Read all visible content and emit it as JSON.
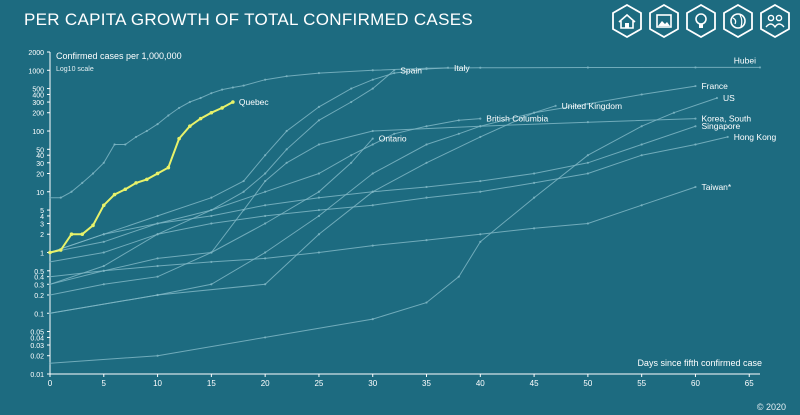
{
  "title": "PER CAPITA GROWTH OF TOTAL CONFIRMED CASES",
  "copyright": "© 2020",
  "toolbar": [
    {
      "icon": "home-icon"
    },
    {
      "icon": "image-icon"
    },
    {
      "icon": "lightbulb-icon"
    },
    {
      "icon": "globe-icon"
    },
    {
      "icon": "people-icon"
    }
  ],
  "colors": {
    "background": "#1d6b80",
    "line": "#7fb6c4",
    "highlight": "#e8f26a",
    "text": "#ffffff"
  },
  "chart_data": {
    "type": "line",
    "ylabel": "Confirmed cases per 1,000,000",
    "yscale_note": "Log10 scale",
    "xlabel": "Days since fifth confirmed case",
    "xlim": [
      0,
      66
    ],
    "ylim": [
      0.01,
      2000
    ],
    "yscale": "log",
    "xticks": [
      0,
      5,
      10,
      15,
      20,
      25,
      30,
      35,
      40,
      45,
      50,
      55,
      60,
      65
    ],
    "yticks": [
      0.01,
      0.02,
      0.03,
      0.04,
      0.05,
      0.1,
      0.2,
      0.3,
      0.4,
      0.5,
      1,
      2,
      3,
      4,
      5,
      10,
      20,
      30,
      40,
      50,
      100,
      200,
      300,
      400,
      500,
      1000,
      2000
    ],
    "ytick_labels": [
      "0.01",
      "0.02",
      "0.03",
      "0.04",
      "0.05",
      "0.1",
      "0.2",
      "0.3",
      "0.4",
      "0.5",
      "1",
      "2",
      "3",
      "4",
      "5",
      "10",
      "20",
      "30",
      "40",
      "50",
      "100",
      "200",
      "300",
      "400",
      "500",
      "1000",
      "2000"
    ],
    "series": [
      {
        "name": "Quebec",
        "highlight": true,
        "x": [
          0,
          1,
          2,
          3,
          4,
          5,
          6,
          7,
          8,
          9,
          10,
          11,
          12,
          13,
          14,
          15,
          16,
          17
        ],
        "y": [
          1,
          1.1,
          2,
          2,
          2.8,
          6,
          9,
          11,
          14,
          16,
          20,
          25,
          75,
          120,
          160,
          200,
          240,
          300
        ]
      },
      {
        "name": "Hubei",
        "x": [
          0,
          1,
          2,
          3,
          4,
          5,
          6,
          7,
          8,
          9,
          10,
          11,
          12,
          13,
          14,
          15,
          16,
          17,
          18,
          20,
          22,
          25,
          30,
          35,
          40,
          50,
          60,
          66
        ],
        "y": [
          8,
          8,
          10,
          14,
          20,
          30,
          60,
          60,
          80,
          100,
          130,
          180,
          240,
          300,
          350,
          420,
          480,
          520,
          560,
          700,
          800,
          900,
          1000,
          1080,
          1100,
          1110,
          1115,
          1115
        ]
      },
      {
        "name": "Spain",
        "x": [
          0,
          5,
          10,
          15,
          18,
          20,
          22,
          25,
          28,
          30,
          32
        ],
        "y": [
          0.3,
          0.6,
          2,
          5,
          10,
          20,
          50,
          150,
          300,
          500,
          1000
        ]
      },
      {
        "name": "Italy",
        "x": [
          0,
          5,
          10,
          15,
          18,
          20,
          22,
          25,
          28,
          30,
          32,
          35,
          37
        ],
        "y": [
          1,
          2,
          4,
          8,
          15,
          40,
          100,
          250,
          500,
          700,
          900,
          1050,
          1100
        ]
      },
      {
        "name": "France",
        "x": [
          0,
          10,
          15,
          20,
          25,
          30,
          35,
          38,
          40,
          45,
          50,
          55,
          60
        ],
        "y": [
          0.1,
          0.2,
          0.3,
          1,
          4,
          20,
          60,
          90,
          120,
          200,
          280,
          400,
          550
        ]
      },
      {
        "name": "US",
        "x": [
          0,
          10,
          20,
          30,
          35,
          38,
          40,
          45,
          50,
          55,
          58,
          62
        ],
        "y": [
          0.015,
          0.02,
          0.04,
          0.08,
          0.15,
          0.4,
          1.5,
          8,
          40,
          120,
          200,
          350
        ]
      },
      {
        "name": "United Kingdom",
        "x": [
          0,
          10,
          20,
          25,
          30,
          35,
          40,
          45,
          47
        ],
        "y": [
          0.1,
          0.2,
          0.3,
          2,
          10,
          30,
          80,
          200,
          260
        ]
      },
      {
        "name": "Korea, South",
        "x": [
          0,
          5,
          10,
          15,
          18,
          20,
          22,
          25,
          30,
          40,
          50,
          60
        ],
        "y": [
          0.2,
          0.3,
          0.4,
          1,
          5,
          15,
          30,
          60,
          100,
          120,
          140,
          160
        ]
      },
      {
        "name": "British Columbia",
        "x": [
          0,
          5,
          10,
          15,
          20,
          25,
          28,
          30,
          32,
          35,
          38,
          40
        ],
        "y": [
          1,
          1.5,
          3,
          5,
          10,
          20,
          40,
          60,
          90,
          120,
          150,
          160
        ]
      },
      {
        "name": "Ontario",
        "x": [
          0,
          5,
          10,
          15,
          20,
          25,
          28,
          30
        ],
        "y": [
          0.4,
          0.5,
          0.8,
          1,
          3,
          10,
          30,
          75
        ]
      },
      {
        "name": "Singapore",
        "x": [
          0,
          5,
          10,
          15,
          20,
          25,
          30,
          35,
          40,
          45,
          50,
          55,
          60
        ],
        "y": [
          1,
          2,
          3,
          4,
          6,
          8,
          10,
          12,
          15,
          20,
          30,
          60,
          120
        ]
      },
      {
        "name": "Hong Kong",
        "x": [
          0,
          5,
          10,
          15,
          20,
          25,
          30,
          35,
          40,
          45,
          50,
          55,
          60,
          63
        ],
        "y": [
          0.7,
          1,
          2,
          3,
          4,
          5,
          6,
          8,
          10,
          14,
          20,
          40,
          60,
          80
        ]
      },
      {
        "name": "Taiwan*",
        "x": [
          0,
          5,
          10,
          15,
          20,
          25,
          30,
          35,
          40,
          45,
          50,
          55,
          60
        ],
        "y": [
          0.3,
          0.5,
          0.6,
          0.7,
          0.8,
          1,
          1.3,
          1.6,
          2,
          2.5,
          3,
          6,
          12
        ]
      }
    ]
  }
}
